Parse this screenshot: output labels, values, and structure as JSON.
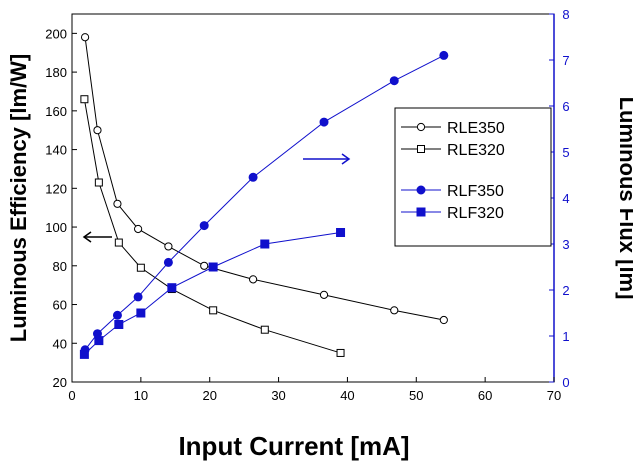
{
  "chart_data": {
    "type": "line",
    "xlabel": "Input Current [mA]",
    "ylabel_left": "Luminous Efficiency [lm/W]",
    "ylabel_right": "Luminous Flux [lm]",
    "xlim": [
      0,
      70
    ],
    "xticks": [
      0,
      10,
      20,
      30,
      40,
      50,
      60,
      70
    ],
    "ylim_left": [
      20,
      210
    ],
    "yticks_left": [
      20,
      40,
      60,
      80,
      100,
      120,
      140,
      160,
      180,
      200
    ],
    "ylim_right": [
      0,
      8
    ],
    "yticks_right": [
      0,
      1,
      2,
      3,
      4,
      5,
      6,
      7,
      8
    ],
    "grid": false,
    "legend_position": "right",
    "series": [
      {
        "name": "RLE350",
        "axis": "left",
        "marker": "open-circle",
        "color": "#000000",
        "x": [
          1.9,
          3.7,
          6.6,
          9.6,
          14.0,
          19.2,
          26.3,
          36.6,
          46.8,
          54.0
        ],
        "y": [
          198,
          150,
          112,
          99,
          90,
          80,
          73,
          65,
          57,
          52
        ]
      },
      {
        "name": "RLE320",
        "axis": "left",
        "marker": "open-square",
        "color": "#000000",
        "x": [
          1.8,
          3.9,
          6.8,
          10.0,
          14.5,
          20.5,
          28.0,
          39.0
        ],
        "y": [
          166,
          123,
          92,
          79,
          68,
          57,
          47,
          35
        ]
      },
      {
        "name": "RLF350",
        "axis": "right",
        "marker": "filled-circle",
        "color": "#1010cc",
        "x": [
          1.9,
          3.7,
          6.6,
          9.6,
          14.0,
          19.2,
          26.3,
          36.6,
          46.8,
          54.0
        ],
        "y": [
          0.7,
          1.05,
          1.45,
          1.85,
          2.6,
          3.4,
          4.45,
          5.65,
          6.55,
          7.1
        ]
      },
      {
        "name": "RLF320",
        "axis": "right",
        "marker": "filled-square",
        "color": "#1010cc",
        "x": [
          1.8,
          3.9,
          6.8,
          10.0,
          14.5,
          20.5,
          28.0,
          39.0
        ],
        "y": [
          0.6,
          0.9,
          1.25,
          1.5,
          2.05,
          2.5,
          3.0,
          3.25
        ]
      }
    ],
    "annotations": [
      {
        "type": "arrow",
        "direction": "left",
        "color": "#000000",
        "points_to": "left-axis"
      },
      {
        "type": "arrow",
        "direction": "right",
        "color": "#1010cc",
        "points_to": "right-axis"
      }
    ]
  }
}
